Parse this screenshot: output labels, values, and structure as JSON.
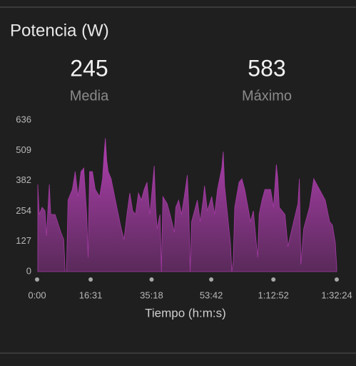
{
  "header": {
    "title": "Potencia (W)"
  },
  "stats": [
    {
      "value": 245,
      "label": "Media"
    },
    {
      "value": 583,
      "label": "Máximo"
    }
  ],
  "chart_data": {
    "type": "area",
    "x_label": "Tiempo (h:m:s)",
    "color": "#a43aa4",
    "x": [
      13,
      40,
      93,
      146,
      173,
      226,
      253,
      333,
      439,
      492,
      519,
      545,
      572,
      652,
      705,
      758,
      811,
      864,
      918,
      944,
      971,
      1024,
      1077,
      1157,
      1210,
      1237,
      1263,
      1290,
      1316,
      1370,
      1449,
      1502,
      1556,
      1609,
      1662,
      1715,
      1768,
      1821,
      1875,
      1928,
      1981,
      2034,
      2087,
      2167,
      2194,
      2220,
      2274,
      2300,
      2327,
      2407,
      2460,
      2540,
      2566,
      2619,
      2673,
      2752,
      2779,
      2806,
      2832,
      2859,
      2965,
      3018,
      3071,
      3098,
      3151,
      3231,
      3284,
      3337,
      3417,
      3444,
      3470,
      3523,
      3576,
      3603,
      3630,
      3656,
      3736,
      3789,
      3842,
      3949,
      4002,
      4055,
      4082,
      4108,
      4161,
      4215,
      4321,
      4374,
      4427,
      4454,
      4481,
      4587,
      4640,
      4747,
      4826,
      4853,
      4880,
      4933,
      5039,
      5119,
      5225,
      5332,
      5412,
      5465,
      5518,
      5544
    ],
    "values": [
      366,
      240,
      270,
      255,
      150,
      366,
      240,
      240,
      165,
      135,
      0,
      0,
      300,
      345,
      420,
      315,
      420,
      435,
      240,
      60,
      420,
      420,
      345,
      315,
      390,
      486,
      560,
      465,
      420,
      390,
      300,
      240,
      180,
      135,
      240,
      330,
      255,
      240,
      330,
      300,
      345,
      375,
      240,
      444,
      270,
      180,
      240,
      0,
      315,
      285,
      240,
      165,
      270,
      300,
      240,
      360,
      405,
      270,
      0,
      210,
      300,
      210,
      300,
      360,
      255,
      315,
      240,
      345,
      435,
      504,
      360,
      240,
      120,
      0,
      45,
      270,
      375,
      390,
      345,
      210,
      255,
      120,
      60,
      240,
      300,
      345,
      345,
      270,
      450,
      390,
      270,
      240,
      105,
      210,
      285,
      390,
      30,
      180,
      270,
      390,
      345,
      300,
      210,
      195,
      120,
      15
    ],
    "xlim": [
      0,
      5544
    ],
    "xticks": [
      {
        "value": 0,
        "label": "0:00"
      },
      {
        "value": 991,
        "label": "16:31"
      },
      {
        "value": 2118,
        "label": "35:18"
      },
      {
        "value": 3222,
        "label": "53:42"
      },
      {
        "value": 4372,
        "label": "1:12:52"
      },
      {
        "value": 5544,
        "label": "1:32:24"
      }
    ],
    "ylim": [
      0,
      636
    ],
    "yticks": [
      0,
      127,
      254,
      382,
      509,
      636
    ]
  }
}
